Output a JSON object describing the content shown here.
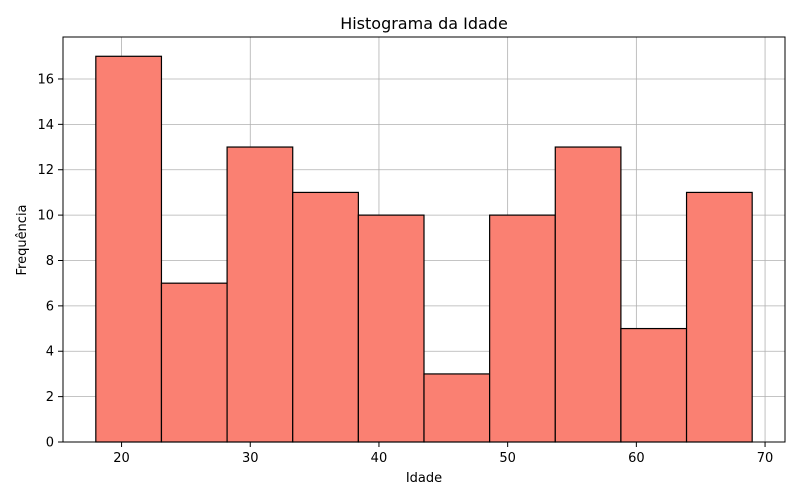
{
  "chart_data": {
    "type": "bar",
    "title": "Histograma da Idade",
    "xlabel": "Idade",
    "ylabel": "Frequência",
    "bins": [
      {
        "start": 18.0,
        "end": 23.1,
        "count": 17
      },
      {
        "start": 23.1,
        "end": 28.2,
        "count": 7
      },
      {
        "start": 28.2,
        "end": 33.3,
        "count": 13
      },
      {
        "start": 33.3,
        "end": 38.4,
        "count": 11
      },
      {
        "start": 38.4,
        "end": 43.5,
        "count": 10
      },
      {
        "start": 43.5,
        "end": 48.6,
        "count": 3
      },
      {
        "start": 48.6,
        "end": 53.7,
        "count": 10
      },
      {
        "start": 53.7,
        "end": 58.8,
        "count": 13
      },
      {
        "start": 58.8,
        "end": 63.9,
        "count": 5
      },
      {
        "start": 63.9,
        "end": 69.0,
        "count": 11
      }
    ],
    "xlim": [
      15.45,
      71.55
    ],
    "ylim": [
      0,
      17.85
    ],
    "xticks": [
      20,
      30,
      40,
      50,
      60,
      70
    ],
    "yticks": [
      0,
      2,
      4,
      6,
      8,
      10,
      12,
      14,
      16
    ],
    "grid": true,
    "bar_color": "#fa8072",
    "edge_color": "#000000"
  }
}
